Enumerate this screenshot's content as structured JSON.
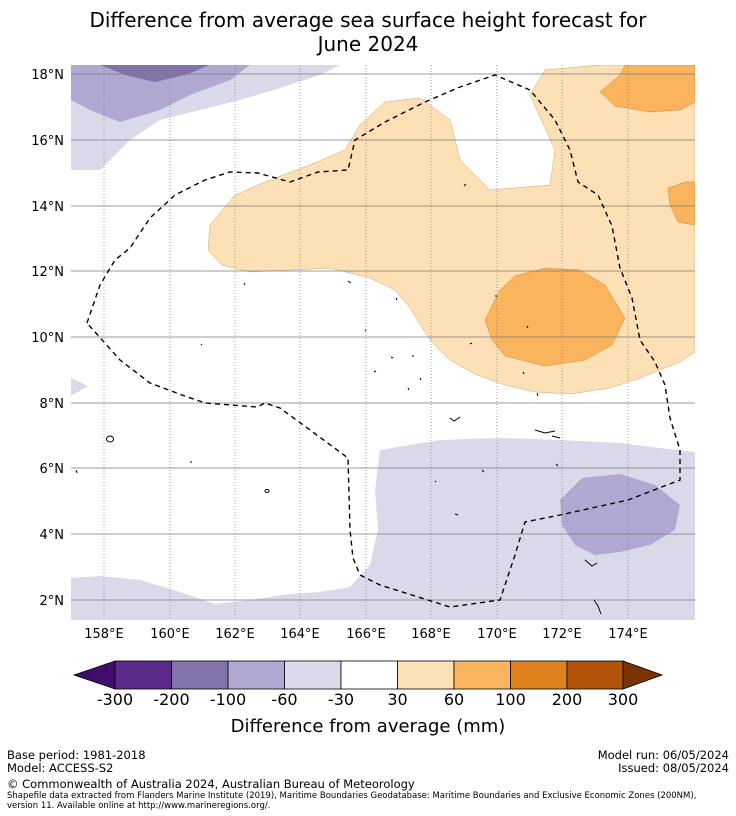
{
  "title_line1": "Difference from average sea surface height forecast for",
  "title_line2": "June 2024",
  "map": {
    "lat_labels": [
      "18°N",
      "16°N",
      "14°N",
      "12°N",
      "10°N",
      "8°N",
      "6°N",
      "4°N",
      "2°N"
    ],
    "lon_labels": [
      "158°E",
      "160°E",
      "162°E",
      "164°E",
      "166°E",
      "168°E",
      "170°E",
      "172°E",
      "174°E"
    ],
    "lat_range": [
      1.4,
      18.3
    ],
    "lon_range": [
      157.0,
      176.0
    ]
  },
  "colorbar": {
    "labels": [
      "-300",
      "-200",
      "-100",
      "-60",
      "-30",
      "30",
      "60",
      "100",
      "200",
      "300"
    ],
    "colors": [
      "#3f0f6b",
      "#5b2a8a",
      "#8373ab",
      "#b1a9d1",
      "#dadaeb",
      "#ffffff",
      "#fde0b6",
      "#fbb45e",
      "#e0811b",
      "#b15208",
      "#7a3303"
    ],
    "title": "Difference from average (mm)"
  },
  "footer": {
    "base_period": "Base period: 1981-2018",
    "model": "Model: ACCESS-S2",
    "model_run": "Model run: 06/05/2024",
    "issued": "Issued: 08/05/2024",
    "copyright": "© Commonwealth of Australia 2024, Australian Bureau of Meteorology",
    "shapefile_note": "Shapefile data extracted from Flanders Marine Institute (2019), Maritime Boundaries Geodatabase: Maritime Boundaries and Exclusive Economic Zones (200NM), version 11. Available online at http://www.marineregions.org/."
  }
}
